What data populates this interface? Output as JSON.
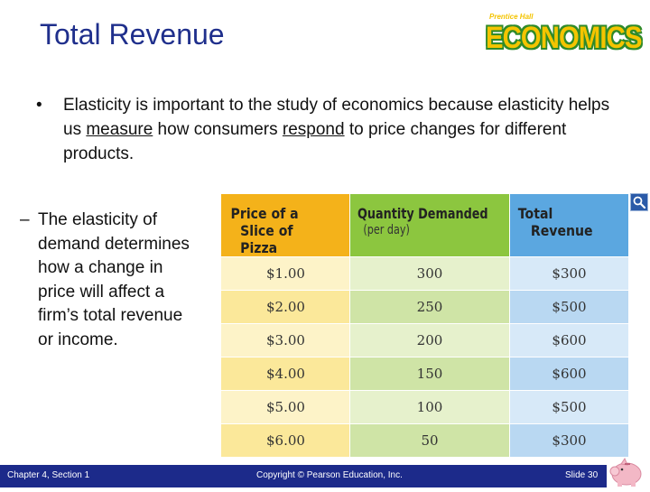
{
  "slide": {
    "title": "Total Revenue",
    "logo": {
      "top_text": "Prentice Hall",
      "main_text": "ECONOMICS"
    },
    "bullet": {
      "part1": "Elasticity is important to the study of economics because elasticity helps us ",
      "u1": "measure",
      "part2": " how consumers ",
      "u2": "respond",
      "part3": " to price changes for different products."
    },
    "sub_bullet": "The elasticity of demand determines how a change in price will affect a firm’s total revenue or income."
  },
  "table": {
    "headers": {
      "price_line1": "Price of a",
      "price_line2": "Slice of Pizza",
      "qty_line1": "Quantity Demanded",
      "qty_line2": "(per day)",
      "rev_line1": "Total",
      "rev_line2": "Revenue"
    },
    "rows": [
      {
        "price": "$1.00",
        "quantity": "300",
        "revenue": "$300"
      },
      {
        "price": "$2.00",
        "quantity": "250",
        "revenue": "$500"
      },
      {
        "price": "$3.00",
        "quantity": "200",
        "revenue": "$600"
      },
      {
        "price": "$4.00",
        "quantity": "150",
        "revenue": "$600"
      },
      {
        "price": "$5.00",
        "quantity": "100",
        "revenue": "$500"
      },
      {
        "price": "$6.00",
        "quantity": "50",
        "revenue": "$300"
      }
    ]
  },
  "footer": {
    "chapter": "Chapter 4, Section 1",
    "copyright": "Copyright © Pearson Education, Inc.",
    "slide_number": "Slide 30"
  },
  "icons": {
    "zoom": "magnifier-icon",
    "mascot": "piggy-bank-icon"
  },
  "colors": {
    "title": "#1f2f8c",
    "footer_bg": "#1c2a8a",
    "price_header": "#f4b21a",
    "quantity_header": "#8cc63f",
    "revenue_header": "#5ba7e0"
  }
}
